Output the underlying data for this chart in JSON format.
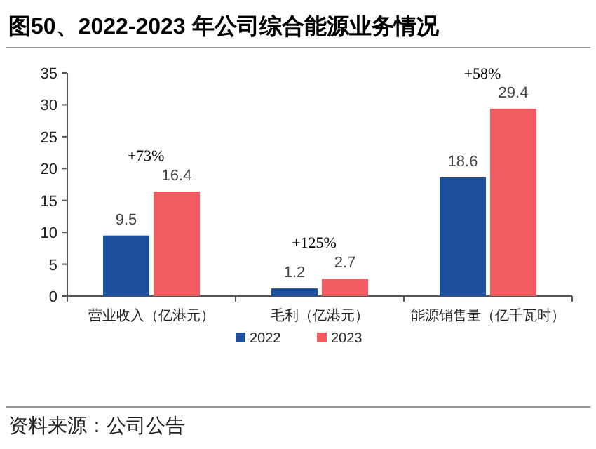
{
  "chart_data": {
    "type": "bar",
    "title": "图50、2022-2023 年公司综合能源业务情况",
    "categories": [
      "营业收入（亿港元）",
      "毛利（亿港元）",
      "能源销售量（亿千瓦时）"
    ],
    "series": [
      {
        "name": "2022",
        "color": "#1b4f9c",
        "values": [
          9.5,
          1.2,
          18.6
        ]
      },
      {
        "name": "2023",
        "color": "#f05b5f",
        "values": [
          16.4,
          2.7,
          29.4
        ]
      }
    ],
    "ylim": [
      0,
      35
    ],
    "yticks": [
      0,
      5,
      10,
      15,
      20,
      25,
      30,
      35
    ],
    "grid": false,
    "legend": "bottom",
    "data_labels": true,
    "annotations": [
      "+73%",
      "+125%",
      "+58%",
      "资料来源：公司公告"
    ]
  }
}
